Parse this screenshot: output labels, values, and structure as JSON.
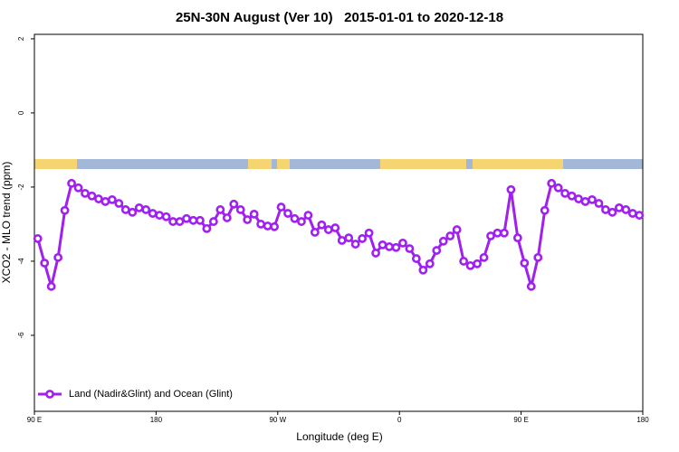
{
  "chart_data": {
    "type": "line",
    "title": "25N-30N August (Ver 10)   2015-01-01 to 2020-12-18",
    "xlabel": "Longitude (deg E)",
    "ylabel": "XCO2 - MLO trend (ppm)",
    "x": [
      92.5,
      97.5,
      102.5,
      107.5,
      112.5,
      117.5,
      122.5,
      127.5,
      132.5,
      137.5,
      142.5,
      147.5,
      152.5,
      157.5,
      162.5,
      167.5,
      172.5,
      177.5,
      182.5,
      187.5,
      192.5,
      197.5,
      202.5,
      207.5,
      212.5,
      217.5,
      222.5,
      227.5,
      232.5,
      237.5,
      242.5,
      247.5,
      252.5,
      257.5,
      262.5,
      267.5,
      272.5,
      277.5,
      282.5,
      287.5,
      292.5,
      297.5,
      302.5,
      307.5,
      312.5,
      317.5,
      322.5,
      327.5,
      332.5,
      337.5,
      342.5,
      347.5,
      352.5,
      357.5,
      362.5,
      367.5,
      372.5,
      377.5,
      382.5,
      387.5,
      392.5,
      397.5,
      402.5,
      407.5,
      412.5,
      417.5,
      422.5,
      427.5,
      432.5,
      437.5,
      442.5,
      447.5,
      452.5,
      457.5,
      462.5,
      467.5,
      472.5,
      477.5,
      482.5,
      487.5,
      492.5,
      497.5,
      502.5,
      507.5,
      512.5,
      517.5,
      522.5,
      527.5,
      532.5,
      537.5
    ],
    "series": [
      {
        "name": "Land (Nadir&Glint) and Ocean (Glint)",
        "color": "#a020f0",
        "values": [
          -3.39,
          -4.05,
          -4.68,
          -3.9,
          -2.63,
          -1.9,
          -2.02,
          -2.17,
          -2.24,
          -2.32,
          -2.39,
          -2.34,
          -2.44,
          -2.61,
          -2.68,
          -2.56,
          -2.61,
          -2.71,
          -2.76,
          -2.8,
          -2.93,
          -2.93,
          -2.85,
          -2.9,
          -2.9,
          -3.12,
          -2.93,
          -2.61,
          -2.83,
          -2.46,
          -2.61,
          -2.88,
          -2.73,
          -3.0,
          -3.05,
          -3.07,
          -2.54,
          -2.71,
          -2.85,
          -2.93,
          -2.76,
          -3.22,
          -3.02,
          -3.15,
          -3.1,
          -3.44,
          -3.37,
          -3.54,
          -3.39,
          -3.24,
          -3.78,
          -3.56,
          -3.61,
          -3.63,
          -3.51,
          -3.66,
          -3.93,
          -4.24,
          -4.07,
          -3.71,
          -3.46,
          -3.32,
          -3.15,
          -4.0,
          -4.12,
          -4.07,
          -3.9,
          -3.32,
          -3.24,
          -3.24,
          -2.07,
          -3.37,
          -4.05,
          -4.68,
          -3.9,
          -2.63,
          -1.9,
          -2.02,
          -2.17,
          -2.24,
          -2.32,
          -2.39,
          -2.34,
          -2.44,
          -2.61,
          -2.68,
          -2.56,
          -2.61,
          -2.71,
          -2.76
        ]
      }
    ],
    "xlim": [
      90,
      540
    ],
    "xticks": [
      {
        "value": 90,
        "label": "90 E"
      },
      180,
      {
        "value": 270,
        "label": "90 W"
      },
      {
        "value": 360,
        "label": "0"
      },
      {
        "value": 450,
        "label": "90 E"
      },
      {
        "value": 540,
        "label": "180"
      }
    ],
    "ylim": [
      -8.05,
      2.12
    ],
    "yticks": [
      -6,
      -4,
      -2,
      0,
      2
    ],
    "legend": "bottom-left"
  }
}
